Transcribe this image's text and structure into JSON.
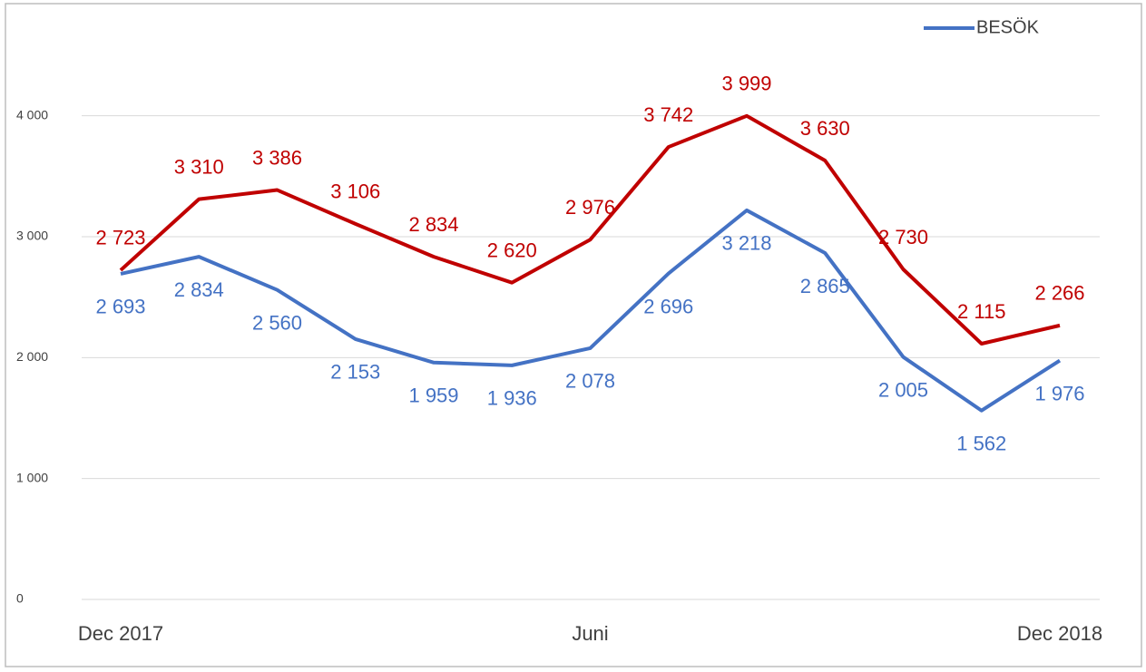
{
  "chart_data": {
    "type": "line",
    "categories": [
      "Dec 2017",
      null,
      null,
      null,
      null,
      null,
      "Juni",
      null,
      null,
      null,
      null,
      null,
      "Dec 2018"
    ],
    "series": [
      {
        "name": "BESÖK",
        "color": "#4472c4",
        "values": [
          2693,
          2834,
          2560,
          2153,
          1959,
          1936,
          2078,
          2696,
          3218,
          2865,
          2005,
          1562,
          1976
        ],
        "value_labels": [
          "2 693",
          "2 834",
          "2 560",
          "2 153",
          "1 959",
          "1 936",
          "2 078",
          "2 696",
          "3 218",
          "2 865",
          "2 005",
          "1 562",
          "1 976"
        ]
      },
      {
        "color": "#c00000",
        "values": [
          2723,
          3310,
          3386,
          3106,
          2834,
          2620,
          2976,
          3742,
          3999,
          3630,
          2730,
          2115,
          2266
        ],
        "value_labels": [
          "2 723",
          "3 310",
          "3 386",
          "3 106",
          "2 834",
          "2 620",
          "2 976",
          "3 742",
          "3 999",
          "3 630",
          "2 730",
          "2 115",
          "2 266"
        ]
      }
    ],
    "ylim": [
      0,
      4500
    ],
    "yticks": [
      0,
      {
        "value": 1000,
        "label": "1 000"
      },
      {
        "value": 2000,
        "label": "2 000"
      },
      {
        "value": 3000,
        "label": "3 000"
      },
      {
        "value": 4000,
        "label": "4 000"
      }
    ],
    "grid": true,
    "legend": "top-right"
  }
}
